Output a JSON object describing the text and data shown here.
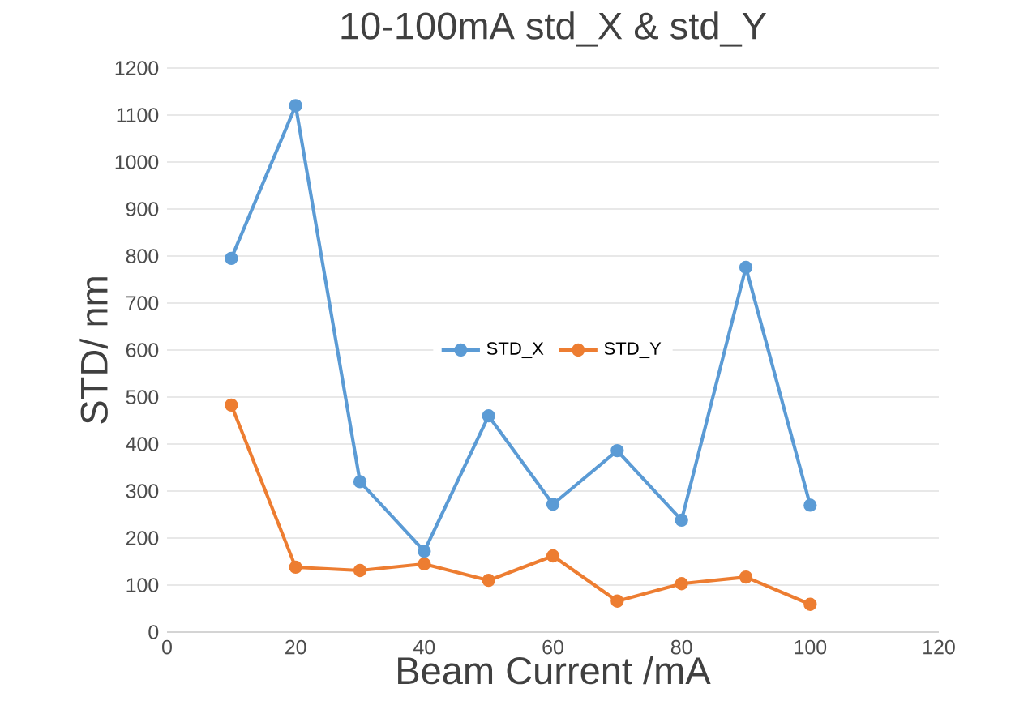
{
  "chart_data": {
    "type": "line",
    "title": "10-100mA  std_X & std_Y",
    "xlabel": "Beam Current /mA",
    "ylabel": "STD/ nm",
    "x": [
      10,
      20,
      30,
      40,
      50,
      60,
      70,
      80,
      90,
      100
    ],
    "series": [
      {
        "name": "STD_X",
        "color": "#5b9bd5",
        "values": [
          795,
          1120,
          320,
          172,
          460,
          272,
          386,
          238,
          776,
          270
        ]
      },
      {
        "name": "STD_Y",
        "color": "#ed7d31",
        "values": [
          483,
          138,
          131,
          145,
          110,
          162,
          66,
          103,
          117,
          59
        ]
      }
    ],
    "xlim": [
      0,
      120
    ],
    "xticks": [
      0,
      20,
      40,
      60,
      80,
      100,
      120
    ],
    "ylim": [
      0,
      1200
    ],
    "yticks": [
      0,
      100,
      200,
      300,
      400,
      500,
      600,
      700,
      800,
      900,
      1000,
      1100,
      1200
    ],
    "grid": "y",
    "legend": "center",
    "marker": "circle",
    "line_style": "solid"
  }
}
